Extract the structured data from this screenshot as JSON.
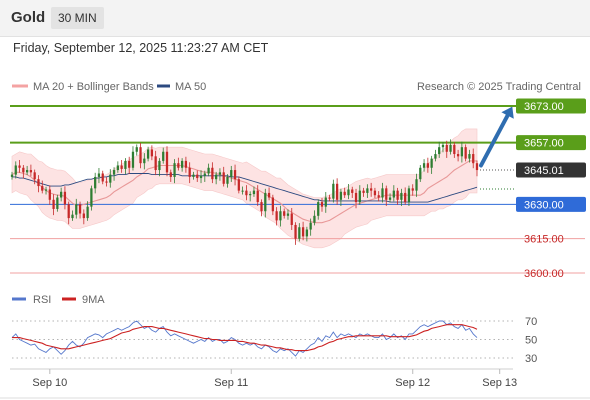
{
  "header": {
    "symbol": "Gold",
    "timeframe": "30 MIN"
  },
  "datetime": "Friday, September 12, 2025 11:23:27 AM CET",
  "legend": {
    "ma20": "MA 20 + Bollinger Bands",
    "ma50": "MA 50",
    "copyright": "Research © 2025 Trading Central",
    "rsi": "RSI",
    "rsi_ma": "9MA"
  },
  "colors": {
    "candle_up": "#2e7d32",
    "candle_down": "#c62828",
    "ma20": "#e89898",
    "ma50": "#2c4a80",
    "bands": "#fde3e3",
    "resistance": "#5a9e1a",
    "pivot": "#2f6bd8",
    "support": "#f0a0a0",
    "arrow": "#2f6db0",
    "rsi": "#5577cc",
    "rsi_ma": "#cc2222"
  },
  "levels": [
    {
      "value": 3673.0,
      "label": "3673.00",
      "kind": "resistance"
    },
    {
      "value": 3657.0,
      "label": "3657.00",
      "kind": "resistance"
    },
    {
      "value": 3645.01,
      "label": "3645.01",
      "kind": "last"
    },
    {
      "value": 3630.0,
      "label": "3630.00",
      "kind": "pivot"
    },
    {
      "value": 3615.0,
      "label": "3615.00",
      "kind": "support"
    },
    {
      "value": 3600.0,
      "label": "3600.00",
      "kind": "support"
    }
  ],
  "chart_data": [
    {
      "type": "candlestick",
      "title": "Gold",
      "timeframe": "30 MIN",
      "x_labels": [
        {
          "label": "Sep 10",
          "index": 10
        },
        {
          "label": "Sep 11",
          "index": 58
        },
        {
          "label": "Sep 12",
          "index": 106
        },
        {
          "label": "Sep 13",
          "index": 129
        }
      ],
      "ylim": [
        3596,
        3679
      ],
      "series_names": [
        "MA 20 + Bollinger Bands",
        "MA 50"
      ],
      "close": [
        3643.0,
        3647.0,
        3646.0,
        3644.0,
        3645.0,
        3644.0,
        3641.0,
        3638.0,
        3636.0,
        3636.5,
        3632.0,
        3628.0,
        3633.0,
        3635.5,
        3630.0,
        3624.0,
        3625.5,
        3630.0,
        3626.0,
        3624.0,
        3629.0,
        3637.0,
        3642.0,
        3643.5,
        3640.0,
        3639.5,
        3643.0,
        3645.0,
        3647.0,
        3645.5,
        3649.0,
        3646.0,
        3653.0,
        3655.0,
        3648.0,
        3650.0,
        3654.0,
        3651.0,
        3645.0,
        3649.0,
        3653.0,
        3644.0,
        3642.0,
        3648.0,
        3646.0,
        3649.0,
        3646.0,
        3642.0,
        3643.0,
        3641.5,
        3642.5,
        3643.5,
        3646.0,
        3641.0,
        3643.0,
        3644.0,
        3639.0,
        3642.0,
        3645.0,
        3641.0,
        3636.0,
        3636.0,
        3634.0,
        3634.5,
        3636.0,
        3631.0,
        3627.0,
        3635.0,
        3633.0,
        3627.0,
        3623.0,
        3627.0,
        3625.0,
        3626.0,
        3621.0,
        3615.0,
        3620.0,
        3616.0,
        3619.0,
        3622.0,
        3625.0,
        3631.0,
        3629.0,
        3633.0,
        3632.5,
        3639.0,
        3632.0,
        3635.5,
        3634.0,
        3636.5,
        3635.0,
        3631.0,
        3636.0,
        3635.0,
        3637.0,
        3636.0,
        3634.0,
        3633.0,
        3637.0,
        3632.0,
        3633.0,
        3636.0,
        3632.0,
        3635.0,
        3631.0,
        3637.0,
        3636.0,
        3641.0,
        3646.0,
        3648.0,
        3646.0,
        3650.0,
        3652.0,
        3655.0,
        3656.0,
        3653.0,
        3656.0,
        3652.0,
        3651.0,
        3655.0,
        3650.0,
        3652.0,
        3648.0,
        3645.0
      ],
      "ma20": [
        3643.0,
        3644.0,
        3644.0,
        3643.5,
        3643.0,
        3642.0,
        3640.5,
        3639.0,
        3637.5,
        3636.0,
        3635.0,
        3634.5,
        3634.0,
        3634.0,
        3633.5,
        3632.0,
        3630.5,
        3629.5,
        3629.5,
        3630.0,
        3630.5,
        3631.0,
        3631.5,
        3632.0,
        3632.5,
        3633.0,
        3634.0,
        3635.5,
        3636.5,
        3637.5,
        3638.5,
        3639.5,
        3640.5,
        3642.0,
        3643.0,
        3644.0,
        3645.5,
        3646.0,
        3646.5,
        3647.0,
        3647.0,
        3647.0,
        3647.0,
        3647.0,
        3647.0,
        3647.0,
        3646.5,
        3646.0,
        3645.5,
        3645.0,
        3644.5,
        3644.0,
        3644.0,
        3644.0,
        3643.5,
        3643.0,
        3642.5,
        3642.0,
        3641.5,
        3641.0,
        3640.5,
        3640.0,
        3639.5,
        3638.5,
        3637.5,
        3636.5,
        3635.5,
        3634.5,
        3633.5,
        3632.5,
        3631.5,
        3630.5,
        3629.0,
        3627.5,
        3626.5,
        3625.5,
        3624.5,
        3623.5,
        3623.0,
        3622.5,
        3622.0,
        3622.0,
        3622.0,
        3622.5,
        3623.0,
        3624.0,
        3625.0,
        3626.0,
        3627.0,
        3628.0,
        3629.0,
        3630.0,
        3630.5,
        3631.0,
        3631.5,
        3632.0,
        3632.5,
        3633.0,
        3633.5,
        3634.0,
        3634.0,
        3634.0,
        3634.0,
        3634.0,
        3634.0,
        3634.0,
        3634.0,
        3634.0,
        3634.0,
        3635.0,
        3637.0,
        3638.0,
        3639.0,
        3640.0,
        3641.0,
        3642.0,
        3643.5,
        3645.0,
        3646.0,
        3647.0,
        3648.0,
        3649.0,
        3649.0,
        3649.0
      ],
      "ma50": [
        3642.0,
        3642.0,
        3641.5,
        3641.5,
        3641.0,
        3640.5,
        3640.0,
        3639.5,
        3639.0,
        3638.5,
        3638.0,
        3638.0,
        3638.0,
        3638.0,
        3638.5,
        3638.5,
        3639.0,
        3639.5,
        3640.0,
        3640.5,
        3641.0,
        3641.0,
        3641.5,
        3641.5,
        3642.0,
        3642.0,
        3642.5,
        3642.5,
        3643.0,
        3643.0,
        3643.0,
        3643.5,
        3643.5,
        3643.5,
        3643.5,
        3643.5,
        3643.5,
        3643.0,
        3643.0,
        3643.0,
        3643.0,
        3643.0,
        3643.0,
        3643.0,
        3643.0,
        3642.5,
        3642.5,
        3642.5,
        3642.5,
        3642.5,
        3642.5,
        3642.5,
        3642.5,
        3642.5,
        3642.5,
        3642.5,
        3642.5,
        3642.5,
        3642.0,
        3642.0,
        3642.0,
        3641.5,
        3641.0,
        3640.5,
        3640.0,
        3639.5,
        3639.0,
        3638.5,
        3638.0,
        3637.5,
        3637.0,
        3636.5,
        3636.0,
        3635.5,
        3635.0,
        3634.5,
        3634.0,
        3633.5,
        3633.0,
        3632.5,
        3632.0,
        3632.0,
        3631.5,
        3631.5,
        3631.5,
        3631.5,
        3631.5,
        3631.5,
        3631.5,
        3631.5,
        3631.5,
        3631.5,
        3631.5,
        3631.5,
        3631.5,
        3631.5,
        3631.5,
        3631.5,
        3631.5,
        3631.5,
        3631.0,
        3631.0,
        3631.0,
        3631.0,
        3631.0,
        3631.0,
        3631.0,
        3631.0,
        3631.0,
        3631.0,
        3631.0,
        3631.5,
        3632.0,
        3632.5,
        3633.0,
        3633.5,
        3634.0,
        3634.5,
        3635.0,
        3635.5,
        3636.0,
        3636.5,
        3637.0,
        3637.5
      ],
      "bb_width": [
        8,
        8,
        9,
        9,
        9,
        10,
        10,
        10,
        11,
        11,
        11,
        11,
        11,
        11,
        11,
        11,
        11,
        10,
        10,
        10,
        10,
        10,
        10,
        10,
        10,
        10,
        10,
        10,
        10,
        10,
        10,
        10,
        10,
        9,
        9,
        9,
        9,
        9,
        8,
        8,
        8,
        8,
        8,
        8,
        8,
        8,
        8,
        8,
        8,
        8,
        8,
        8,
        8,
        8,
        8,
        8,
        8,
        8,
        8,
        8,
        8,
        8,
        9,
        9,
        9,
        9,
        9,
        10,
        10,
        10,
        10,
        11,
        11,
        11,
        11,
        11,
        11,
        11,
        11,
        11,
        11,
        11,
        11,
        11,
        11,
        11,
        11,
        11,
        10,
        10,
        10,
        10,
        10,
        10,
        10,
        9,
        9,
        9,
        9,
        9,
        9,
        9,
        9,
        9,
        9,
        9,
        9,
        9,
        9,
        10,
        11,
        11,
        12,
        12,
        13,
        13,
        14,
        14,
        14,
        15,
        15,
        14,
        14,
        14
      ]
    },
    {
      "type": "line",
      "series": [
        {
          "name": "RSI"
        },
        {
          "name": "9MA"
        }
      ],
      "y_ticks": [
        70,
        50,
        30
      ],
      "ylim": [
        25,
        75
      ],
      "rsi": [
        52,
        56,
        50,
        48,
        46,
        44,
        45,
        40,
        38,
        36,
        40,
        42,
        38,
        34,
        38,
        44,
        48,
        44,
        42,
        46,
        52,
        54,
        56,
        55,
        52,
        56,
        58,
        60,
        62,
        60,
        62,
        64,
        68,
        70,
        66,
        62,
        64,
        60,
        58,
        62,
        64,
        58,
        54,
        56,
        54,
        52,
        50,
        48,
        46,
        48,
        50,
        48,
        52,
        48,
        50,
        50,
        46,
        48,
        52,
        50,
        46,
        44,
        46,
        44,
        46,
        42,
        40,
        44,
        42,
        38,
        36,
        40,
        38,
        40,
        36,
        32,
        38,
        36,
        40,
        44,
        46,
        52,
        48,
        54,
        52,
        58,
        52,
        56,
        54,
        56,
        54,
        52,
        56,
        54,
        56,
        54,
        52,
        52,
        56,
        50,
        52,
        56,
        52,
        54,
        50,
        56,
        56,
        60,
        64,
        66,
        64,
        66,
        68,
        70,
        70,
        66,
        68,
        64,
        62,
        66,
        60,
        62,
        56,
        52
      ],
      "rsi_ma": [
        52,
        52,
        52,
        51,
        50,
        49,
        48,
        47,
        46,
        44,
        43,
        42,
        41,
        40,
        40,
        40,
        41,
        42,
        43,
        44,
        45,
        46,
        47,
        48,
        49,
        50,
        51,
        53,
        55,
        57,
        58,
        59,
        61,
        62,
        63,
        64,
        64,
        64,
        63,
        62,
        62,
        61,
        60,
        59,
        58,
        57,
        56,
        55,
        54,
        53,
        52,
        51,
        51,
        50,
        50,
        49,
        49,
        49,
        49,
        49,
        48,
        48,
        47,
        46,
        46,
        45,
        44,
        44,
        43,
        42,
        41,
        41,
        40,
        39,
        39,
        38,
        38,
        38,
        38,
        39,
        40,
        42,
        43,
        45,
        47,
        48,
        50,
        51,
        52,
        53,
        53,
        54,
        54,
        54,
        54,
        54,
        54,
        54,
        54,
        54,
        53,
        53,
        53,
        53,
        53,
        53,
        54,
        55,
        57,
        59,
        60,
        62,
        63,
        64,
        65,
        66,
        66,
        66,
        66,
        66,
        65,
        64,
        63,
        61
      ]
    }
  ]
}
